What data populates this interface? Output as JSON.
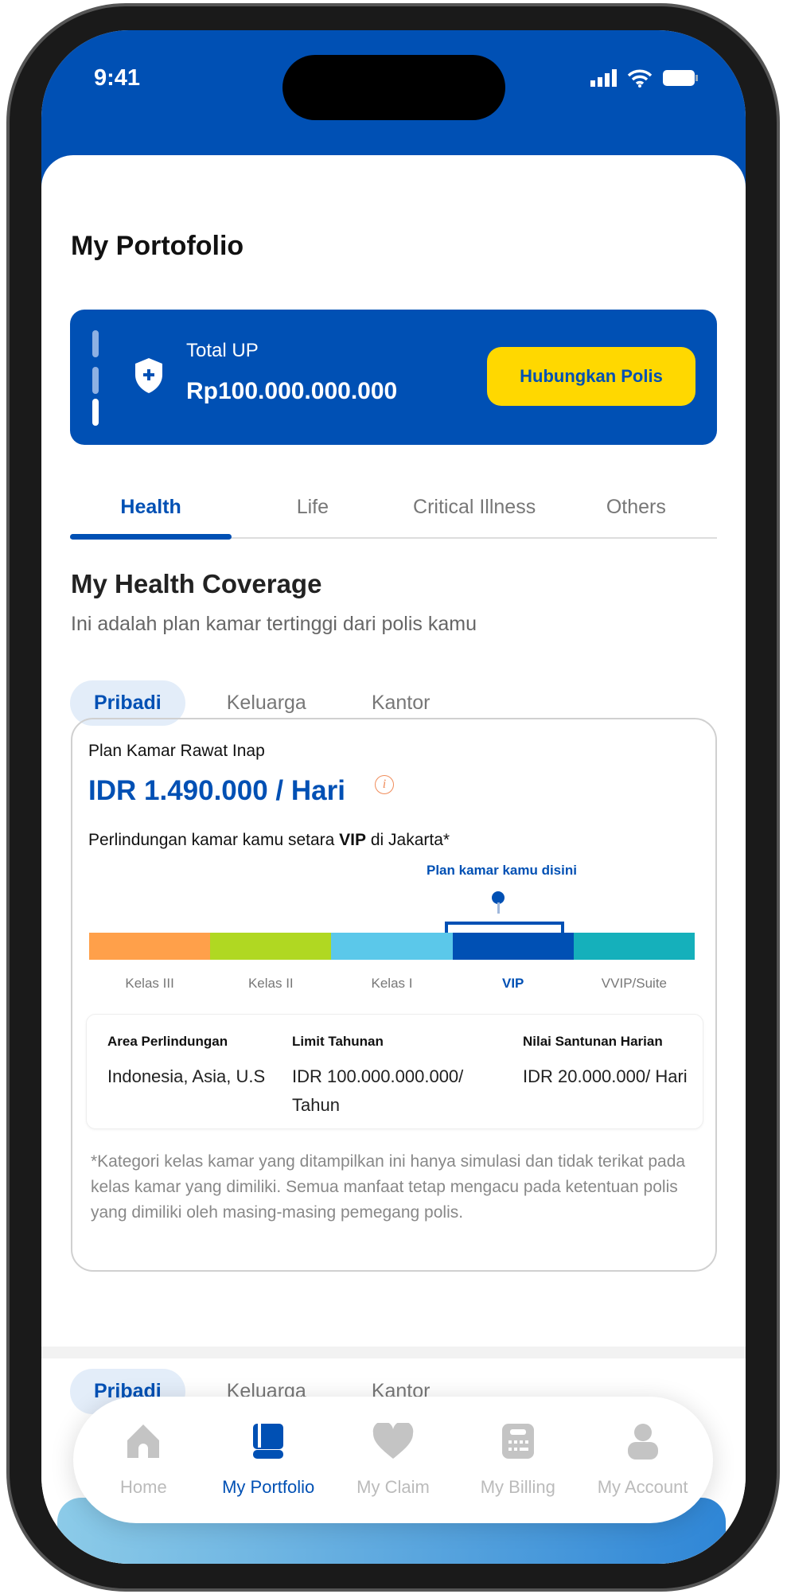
{
  "status": {
    "time": "9:41"
  },
  "page_title": "My Portofolio",
  "total_up": {
    "label": "Total UP",
    "value": "Rp100.000.000.000",
    "button": "Hubungkan Polis"
  },
  "tabs": [
    {
      "label": "Health",
      "active": true
    },
    {
      "label": "Life"
    },
    {
      "label": "Critical Illness"
    },
    {
      "label": "Others"
    }
  ],
  "coverage": {
    "title": "My Health Coverage",
    "subtitle": "Ini adalah plan kamar tertinggi dari polis kamu",
    "pills": [
      {
        "label": "Pribadi",
        "active": true
      },
      {
        "label": "Keluarga"
      },
      {
        "label": "Kantor"
      }
    ],
    "card": {
      "label": "Plan Kamar Rawat Inap",
      "price": "IDR 1.490.000 / Hari",
      "info_icon": "i",
      "desc_pre": "Perlindungan kamar kamu setara ",
      "desc_bold": "VIP",
      "desc_post": " di Jakarta*",
      "marker_label": "Plan kamar kamu disini",
      "classes": [
        {
          "label": "Kelas III",
          "color": "#ffa04a"
        },
        {
          "label": "Kelas II",
          "color": "#b0d822"
        },
        {
          "label": "Kelas I",
          "color": "#5bc8ea"
        },
        {
          "label": "VIP",
          "color": "#0050b4",
          "selected": true
        },
        {
          "label": "VVIP/Suite",
          "color": "#15b0bb"
        }
      ],
      "details": [
        {
          "header": "Area Perlindungan",
          "value": "Indonesia, Asia, U.S"
        },
        {
          "header": "Limit Tahunan",
          "value": "IDR 100.000.000.000/ Tahun"
        },
        {
          "header": "Nilai Santunan Harian",
          "value": "IDR 20.000.000/ Hari"
        }
      ],
      "note": "*Kategori kelas kamar yang ditampilkan ini hanya simulasi dan tidak terikat pada kelas kamar yang dimiliki. Semua manfaat tetap mengacu pada ketentuan polis yang dimiliki oleh masing-masing pemegang polis."
    }
  },
  "pills2": [
    {
      "label": "Pribadi"
    },
    {
      "label": "Keluarga"
    },
    {
      "label": "Kantor"
    }
  ],
  "nav": [
    {
      "label": "Home",
      "icon": "home-icon"
    },
    {
      "label": "My Portfolio",
      "icon": "book-icon",
      "active": true
    },
    {
      "label": "My Claim",
      "icon": "heart-icon"
    },
    {
      "label": "My Billing",
      "icon": "calculator-icon"
    },
    {
      "label": "My Account",
      "icon": "user-icon"
    }
  ],
  "colors": {
    "primary": "#0050b4",
    "accent": "#ffd800"
  }
}
